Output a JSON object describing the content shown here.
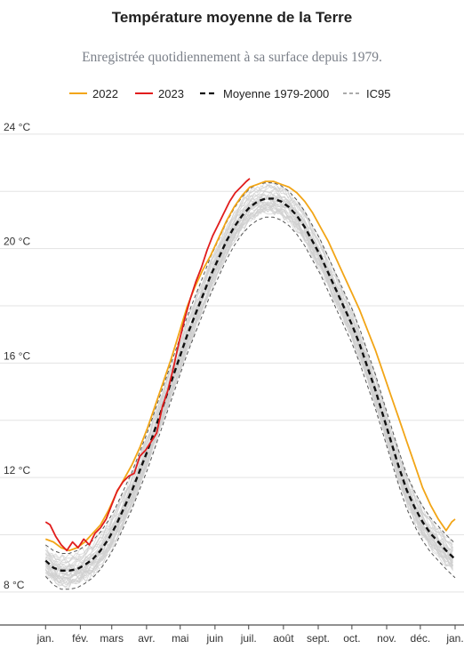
{
  "chart_data": {
    "type": "line",
    "title": "Température moyenne de la Terre",
    "subtitle": "Enregistrée quotidiennement à sa surface depuis 1979.",
    "xlabel": "",
    "ylabel": "",
    "ylim": [
      6.6,
      24.4
    ],
    "xlim": [
      0,
      366
    ],
    "yticks": [
      {
        "value": 8,
        "label": "8 °C"
      },
      {
        "value": 12,
        "label": "12 °C"
      },
      {
        "value": 16,
        "label": "16 °C"
      },
      {
        "value": 20,
        "label": "20 °C"
      },
      {
        "value": 24,
        "label": "24 °C"
      }
    ],
    "xticks": [
      {
        "day": 1,
        "label": "jan."
      },
      {
        "day": 32,
        "label": "fév."
      },
      {
        "day": 60,
        "label": "mars"
      },
      {
        "day": 91,
        "label": "avr."
      },
      {
        "day": 121,
        "label": "mai"
      },
      {
        "day": 152,
        "label": "juin"
      },
      {
        "day": 182,
        "label": "juil."
      },
      {
        "day": 213,
        "label": "août"
      },
      {
        "day": 244,
        "label": "sept."
      },
      {
        "day": 274,
        "label": "oct."
      },
      {
        "day": 305,
        "label": "nov."
      },
      {
        "day": 335,
        "label": "déc."
      },
      {
        "day": 366,
        "label": "jan."
      }
    ],
    "grid": true,
    "legend_position": "top",
    "series": [
      {
        "name": "2022",
        "color": "#f2a516",
        "style": "solid",
        "points": [
          [
            1,
            9.6
          ],
          [
            8,
            9.5
          ],
          [
            15,
            9.3
          ],
          [
            22,
            9.2
          ],
          [
            29,
            9.3
          ],
          [
            36,
            9.5
          ],
          [
            43,
            9.8
          ],
          [
            50,
            10.1
          ],
          [
            57,
            10.6
          ],
          [
            64,
            11.2
          ],
          [
            71,
            11.7
          ],
          [
            78,
            12.2
          ],
          [
            85,
            12.8
          ],
          [
            92,
            13.5
          ],
          [
            99,
            14.3
          ],
          [
            106,
            15.1
          ],
          [
            113,
            15.9
          ],
          [
            120,
            16.8
          ],
          [
            127,
            17.7
          ],
          [
            134,
            18.4
          ],
          [
            141,
            19.0
          ],
          [
            148,
            19.5
          ],
          [
            155,
            20.1
          ],
          [
            162,
            20.7
          ],
          [
            169,
            21.2
          ],
          [
            176,
            21.6
          ],
          [
            183,
            21.9
          ],
          [
            190,
            22.0
          ],
          [
            197,
            22.1
          ],
          [
            204,
            22.1
          ],
          [
            211,
            22.0
          ],
          [
            218,
            21.9
          ],
          [
            225,
            21.7
          ],
          [
            232,
            21.4
          ],
          [
            239,
            21.0
          ],
          [
            246,
            20.5
          ],
          [
            253,
            20.0
          ],
          [
            260,
            19.4
          ],
          [
            267,
            18.8
          ],
          [
            274,
            18.2
          ],
          [
            281,
            17.6
          ],
          [
            288,
            16.9
          ],
          [
            295,
            16.2
          ],
          [
            302,
            15.4
          ],
          [
            309,
            14.6
          ],
          [
            316,
            13.8
          ],
          [
            323,
            13.0
          ],
          [
            330,
            12.2
          ],
          [
            337,
            11.4
          ],
          [
            344,
            10.8
          ],
          [
            351,
            10.3
          ],
          [
            358,
            9.9
          ],
          [
            363,
            10.2
          ],
          [
            366,
            10.3
          ]
        ]
      },
      {
        "name": "2023",
        "color": "#e11d1d",
        "style": "solid",
        "points": [
          [
            1,
            10.2
          ],
          [
            5,
            10.1
          ],
          [
            10,
            9.7
          ],
          [
            15,
            9.4
          ],
          [
            20,
            9.2
          ],
          [
            25,
            9.5
          ],
          [
            30,
            9.3
          ],
          [
            35,
            9.6
          ],
          [
            40,
            9.4
          ],
          [
            45,
            9.8
          ],
          [
            50,
            10.0
          ],
          [
            55,
            10.3
          ],
          [
            60,
            10.8
          ],
          [
            65,
            11.3
          ],
          [
            70,
            11.6
          ],
          [
            75,
            11.8
          ],
          [
            80,
            11.9
          ],
          [
            85,
            12.5
          ],
          [
            90,
            12.7
          ],
          [
            95,
            13.0
          ],
          [
            100,
            13.3
          ],
          [
            105,
            14.2
          ],
          [
            110,
            14.8
          ],
          [
            115,
            15.6
          ],
          [
            120,
            16.5
          ],
          [
            125,
            17.3
          ],
          [
            130,
            18.0
          ],
          [
            135,
            18.6
          ],
          [
            140,
            19.1
          ],
          [
            145,
            19.7
          ],
          [
            150,
            20.2
          ],
          [
            155,
            20.6
          ],
          [
            160,
            21.0
          ],
          [
            165,
            21.4
          ],
          [
            170,
            21.7
          ],
          [
            175,
            21.9
          ],
          [
            180,
            22.1
          ],
          [
            183,
            22.2
          ]
        ]
      },
      {
        "name": "Moyenne 1979-2000",
        "color": "#111111",
        "style": "dashed",
        "points": [
          [
            1,
            8.85
          ],
          [
            8,
            8.6
          ],
          [
            15,
            8.5
          ],
          [
            22,
            8.5
          ],
          [
            29,
            8.55
          ],
          [
            36,
            8.7
          ],
          [
            43,
            8.9
          ],
          [
            50,
            9.2
          ],
          [
            57,
            9.6
          ],
          [
            64,
            10.1
          ],
          [
            71,
            10.7
          ],
          [
            78,
            11.3
          ],
          [
            85,
            12.0
          ],
          [
            92,
            12.7
          ],
          [
            99,
            13.5
          ],
          [
            106,
            14.3
          ],
          [
            113,
            15.1
          ],
          [
            120,
            15.9
          ],
          [
            127,
            16.7
          ],
          [
            134,
            17.4
          ],
          [
            141,
            18.1
          ],
          [
            148,
            18.8
          ],
          [
            155,
            19.4
          ],
          [
            162,
            20.0
          ],
          [
            169,
            20.5
          ],
          [
            176,
            20.9
          ],
          [
            183,
            21.2
          ],
          [
            190,
            21.4
          ],
          [
            197,
            21.5
          ],
          [
            204,
            21.5
          ],
          [
            211,
            21.4
          ],
          [
            218,
            21.2
          ],
          [
            225,
            20.9
          ],
          [
            232,
            20.5
          ],
          [
            239,
            20.0
          ],
          [
            246,
            19.5
          ],
          [
            253,
            18.9
          ],
          [
            260,
            18.3
          ],
          [
            267,
            17.7
          ],
          [
            274,
            17.1
          ],
          [
            281,
            16.4
          ],
          [
            288,
            15.6
          ],
          [
            295,
            14.8
          ],
          [
            302,
            13.9
          ],
          [
            309,
            13.0
          ],
          [
            316,
            12.1
          ],
          [
            323,
            11.3
          ],
          [
            330,
            10.7
          ],
          [
            337,
            10.2
          ],
          [
            344,
            9.8
          ],
          [
            351,
            9.5
          ],
          [
            358,
            9.2
          ],
          [
            366,
            8.9
          ]
        ]
      },
      {
        "name": "IC95",
        "color": "#555555",
        "style": "dashed-thin",
        "upper": [
          [
            1,
            9.4
          ],
          [
            8,
            9.2
          ],
          [
            15,
            9.1
          ],
          [
            22,
            9.1
          ],
          [
            29,
            9.2
          ],
          [
            36,
            9.35
          ],
          [
            43,
            9.55
          ],
          [
            50,
            9.85
          ],
          [
            57,
            10.25
          ],
          [
            64,
            10.75
          ],
          [
            71,
            11.35
          ],
          [
            78,
            11.95
          ],
          [
            85,
            12.65
          ],
          [
            92,
            13.35
          ],
          [
            99,
            14.15
          ],
          [
            106,
            14.95
          ],
          [
            113,
            15.75
          ],
          [
            120,
            16.55
          ],
          [
            127,
            17.35
          ],
          [
            134,
            18.05
          ],
          [
            141,
            18.75
          ],
          [
            148,
            19.45
          ],
          [
            155,
            20.05
          ],
          [
            162,
            20.65
          ],
          [
            169,
            21.15
          ],
          [
            176,
            21.55
          ],
          [
            183,
            21.85
          ],
          [
            190,
            22.0
          ],
          [
            197,
            22.05
          ],
          [
            204,
            22.05
          ],
          [
            211,
            21.95
          ],
          [
            218,
            21.75
          ],
          [
            225,
            21.45
          ],
          [
            232,
            21.05
          ],
          [
            239,
            20.55
          ],
          [
            246,
            20.05
          ],
          [
            253,
            19.45
          ],
          [
            260,
            18.85
          ],
          [
            267,
            18.25
          ],
          [
            274,
            17.65
          ],
          [
            281,
            16.95
          ],
          [
            288,
            16.15
          ],
          [
            295,
            15.35
          ],
          [
            302,
            14.45
          ],
          [
            309,
            13.55
          ],
          [
            316,
            12.65
          ],
          [
            323,
            11.85
          ],
          [
            330,
            11.25
          ],
          [
            337,
            10.75
          ],
          [
            344,
            10.35
          ],
          [
            351,
            10.05
          ],
          [
            358,
            9.75
          ],
          [
            366,
            9.45
          ]
        ],
        "lower": [
          [
            1,
            8.3
          ],
          [
            8,
            8.0
          ],
          [
            15,
            7.85
          ],
          [
            22,
            7.85
          ],
          [
            29,
            7.9
          ],
          [
            36,
            8.05
          ],
          [
            43,
            8.25
          ],
          [
            50,
            8.55
          ],
          [
            57,
            8.95
          ],
          [
            64,
            9.45
          ],
          [
            71,
            10.05
          ],
          [
            78,
            10.65
          ],
          [
            85,
            11.35
          ],
          [
            92,
            12.05
          ],
          [
            99,
            12.85
          ],
          [
            106,
            13.65
          ],
          [
            113,
            14.45
          ],
          [
            120,
            15.25
          ],
          [
            127,
            16.05
          ],
          [
            134,
            16.75
          ],
          [
            141,
            17.45
          ],
          [
            148,
            18.15
          ],
          [
            155,
            18.75
          ],
          [
            162,
            19.35
          ],
          [
            169,
            19.85
          ],
          [
            176,
            20.25
          ],
          [
            183,
            20.55
          ],
          [
            190,
            20.75
          ],
          [
            197,
            20.85
          ],
          [
            204,
            20.85
          ],
          [
            211,
            20.75
          ],
          [
            218,
            20.55
          ],
          [
            225,
            20.25
          ],
          [
            232,
            19.85
          ],
          [
            239,
            19.35
          ],
          [
            246,
            18.85
          ],
          [
            253,
            18.25
          ],
          [
            260,
            17.65
          ],
          [
            267,
            17.05
          ],
          [
            274,
            16.45
          ],
          [
            281,
            15.75
          ],
          [
            288,
            14.95
          ],
          [
            295,
            14.15
          ],
          [
            302,
            13.25
          ],
          [
            309,
            12.35
          ],
          [
            316,
            11.45
          ],
          [
            323,
            10.65
          ],
          [
            330,
            10.05
          ],
          [
            337,
            9.55
          ],
          [
            344,
            9.15
          ],
          [
            351,
            8.85
          ],
          [
            358,
            8.55
          ],
          [
            366,
            8.25
          ]
        ]
      }
    ]
  }
}
